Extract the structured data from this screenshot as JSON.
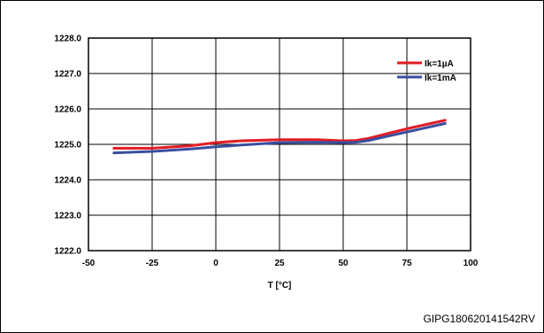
{
  "chart_data": {
    "type": "line",
    "title": "",
    "xlabel": "T [°C]",
    "ylabel": "",
    "xlim": [
      -50,
      100
    ],
    "ylim": [
      1222.0,
      1228.0
    ],
    "x_ticks": [
      -50,
      -25,
      0,
      25,
      50,
      75,
      100
    ],
    "y_ticks": [
      1222.0,
      1223.0,
      1224.0,
      1225.0,
      1226.0,
      1227.0,
      1228.0
    ],
    "x_tick_labels": [
      "-50",
      "-25",
      "0",
      "25",
      "50",
      "75",
      "100"
    ],
    "y_tick_labels": [
      "1222.0",
      "1223.0",
      "1224.0",
      "1225.0",
      "1226.0",
      "1227.0",
      "1228.0"
    ],
    "grid": true,
    "legend_position": "top-right",
    "series": [
      {
        "name": "Ik=1µA",
        "color": "#e31b23",
        "x": [
          -40,
          -25,
          -10,
          0,
          10,
          25,
          40,
          50,
          55,
          60,
          65,
          70,
          75,
          80,
          85,
          90
        ],
        "y": [
          1224.89,
          1224.89,
          1224.96,
          1225.05,
          1225.1,
          1225.13,
          1225.13,
          1225.1,
          1225.11,
          1225.17,
          1225.26,
          1225.35,
          1225.44,
          1225.52,
          1225.6,
          1225.68
        ]
      },
      {
        "name": "Ik=1mA",
        "color": "#3a4ea0",
        "x": [
          -40,
          -25,
          -10,
          0,
          10,
          25,
          40,
          50,
          55,
          60,
          65,
          70,
          75,
          80,
          85,
          90
        ],
        "y": [
          1224.76,
          1224.8,
          1224.87,
          1224.93,
          1224.98,
          1225.05,
          1225.06,
          1225.05,
          1225.06,
          1225.11,
          1225.19,
          1225.27,
          1225.35,
          1225.43,
          1225.51,
          1225.59
        ]
      }
    ]
  },
  "source_code": "GIPG180620141542RV"
}
